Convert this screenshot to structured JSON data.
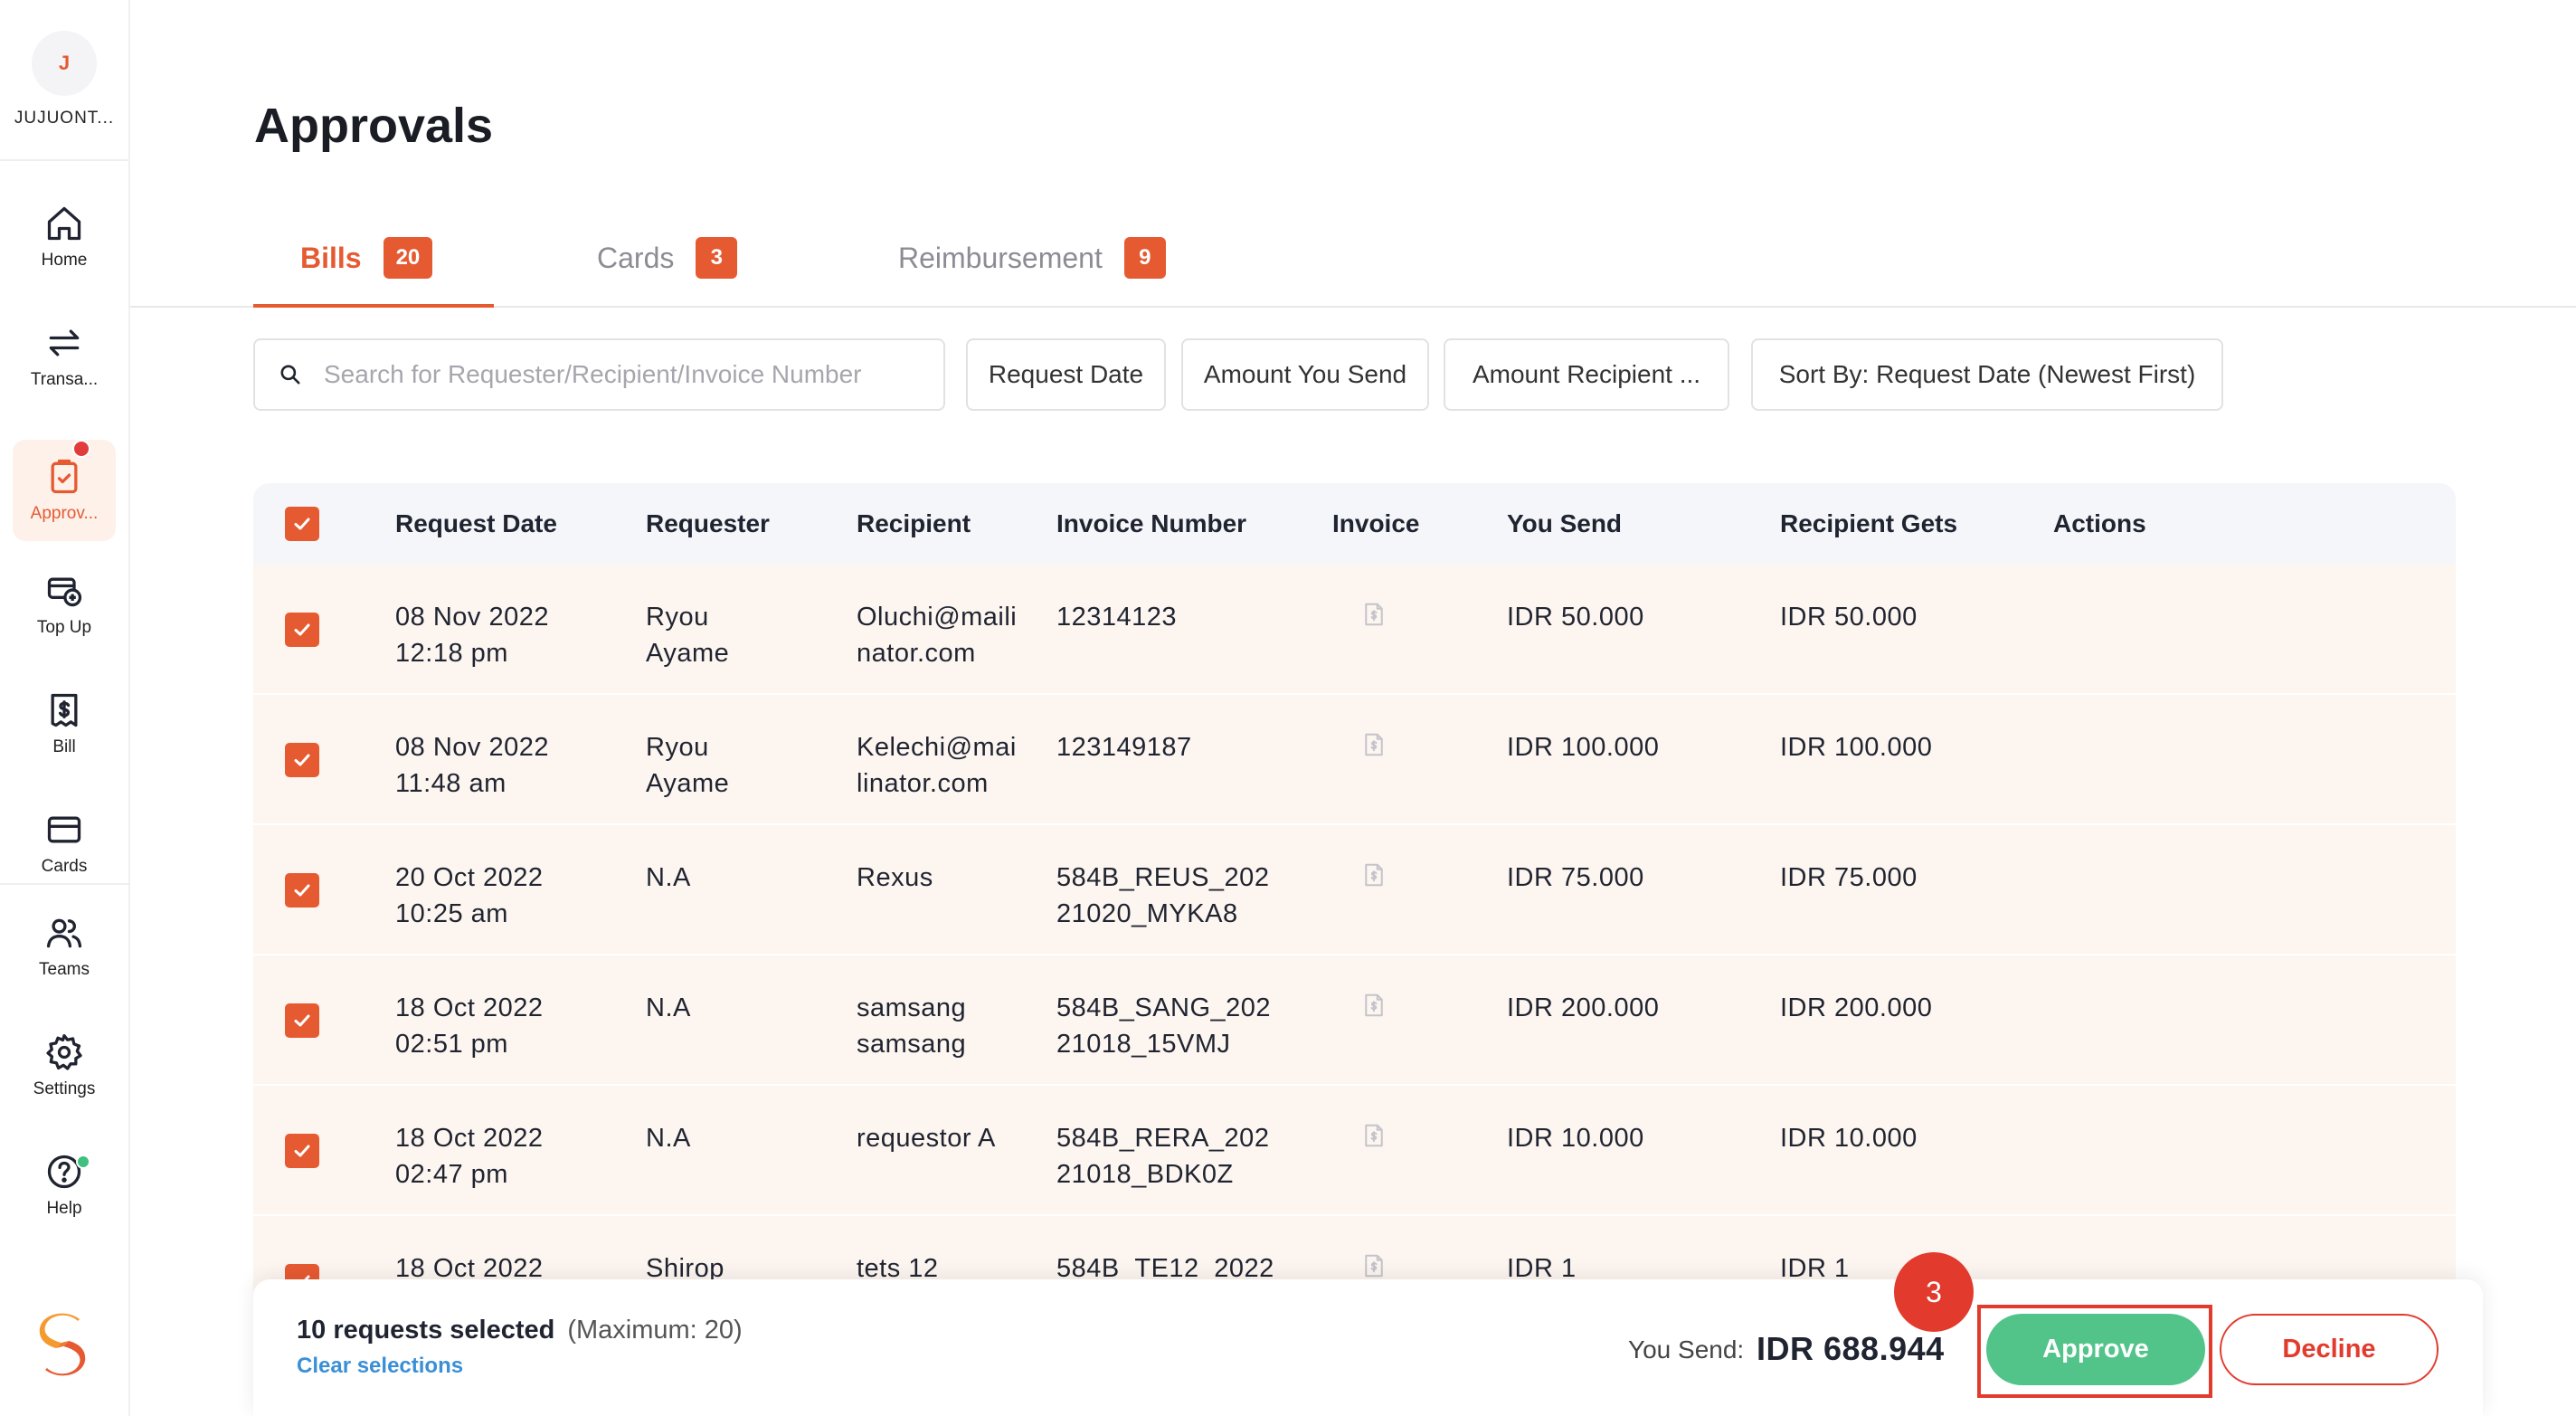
{
  "sidebar": {
    "avatar_initial": "J",
    "org_name": "JUJUONT...",
    "items": [
      {
        "label": "Home",
        "icon": "home-icon"
      },
      {
        "label": "Transa...",
        "icon": "transfer-icon"
      },
      {
        "label": "Approv...",
        "icon": "approval-icon",
        "active": true,
        "notification": true
      },
      {
        "label": "Top Up",
        "icon": "top-up-icon"
      },
      {
        "label": "Bill",
        "icon": "bill-icon"
      },
      {
        "label": "Cards",
        "icon": "card-icon"
      },
      {
        "label": "Teams",
        "icon": "teams-icon"
      },
      {
        "label": "Settings",
        "icon": "gear-icon"
      },
      {
        "label": "Help",
        "icon": "help-icon",
        "notification": true
      }
    ]
  },
  "page": {
    "title": "Approvals"
  },
  "tabs": [
    {
      "label": "Bills",
      "count": "20",
      "active": true
    },
    {
      "label": "Cards",
      "count": "3"
    },
    {
      "label": "Reimbursement",
      "count": "9"
    }
  ],
  "filters": {
    "search_placeholder": "Search for Requester/Recipient/Invoice Number",
    "request_date": "Request Date",
    "amount_you_send": "Amount You Send",
    "amount_recipient": "Amount Recipient ...",
    "sort_by": "Sort By: Request Date (Newest First)"
  },
  "table": {
    "headers": {
      "request_date": "Request Date",
      "requester": "Requester",
      "recipient": "Recipient",
      "invoice_number": "Invoice Number",
      "invoice": "Invoice",
      "you_send": "You Send",
      "recipient_gets": "Recipient Gets",
      "actions": "Actions"
    },
    "rows": [
      {
        "date": "08 Nov 2022",
        "time": "12:18 pm",
        "requester1": "Ryou",
        "requester2": "Ayame",
        "recipient1": "Oluchi@maili",
        "recipient2": "nator.com",
        "invoice1": "12314123",
        "invoice2": "",
        "you_send": "IDR 50.000",
        "recipient_gets": "IDR 50.000"
      },
      {
        "date": "08 Nov 2022",
        "time": "11:48 am",
        "requester1": "Ryou",
        "requester2": "Ayame",
        "recipient1": "Kelechi@mai",
        "recipient2": "linator.com",
        "invoice1": "123149187",
        "invoice2": "",
        "you_send": "IDR 100.000",
        "recipient_gets": "IDR 100.000"
      },
      {
        "date": "20 Oct 2022",
        "time": "10:25 am",
        "requester1": "N.A",
        "requester2": "",
        "recipient1": "Rexus",
        "recipient2": "",
        "invoice1": "584B_REUS_202",
        "invoice2": "21020_MYKA8",
        "you_send": "IDR 75.000",
        "recipient_gets": "IDR 75.000"
      },
      {
        "date": "18 Oct 2022",
        "time": "02:51 pm",
        "requester1": "N.A",
        "requester2": "",
        "recipient1": "samsang",
        "recipient2": "samsang",
        "invoice1": "584B_SANG_202",
        "invoice2": "21018_15VMJ",
        "you_send": "IDR 200.000",
        "recipient_gets": "IDR 200.000"
      },
      {
        "date": "18 Oct 2022",
        "time": "02:47 pm",
        "requester1": "N.A",
        "requester2": "",
        "recipient1": "requestor A",
        "recipient2": "",
        "invoice1": "584B_RERA_202",
        "invoice2": "21018_BDK0Z",
        "you_send": "IDR 10.000",
        "recipient_gets": "IDR 10.000"
      },
      {
        "date": "18 Oct 2022",
        "time": "",
        "requester1": "Shirop",
        "requester2": "",
        "recipient1": "tets 12",
        "recipient2": "",
        "invoice1": "584B_TE12_2022",
        "invoice2": "",
        "you_send": "IDR 1",
        "recipient_gets": "IDR 1"
      }
    ]
  },
  "bottom_bar": {
    "selected_text": "10 requests selected",
    "max_text": "(Maximum: 20)",
    "clear_label": "Clear selections",
    "you_send_label": "You Send:",
    "you_send_value": "IDR 688.944",
    "step_number": "3",
    "approve_label": "Approve",
    "decline_label": "Decline"
  },
  "colors": {
    "accent": "#e65a32",
    "approve": "#52c48a",
    "decline": "#e23b2e",
    "link": "#3a8fd6"
  }
}
